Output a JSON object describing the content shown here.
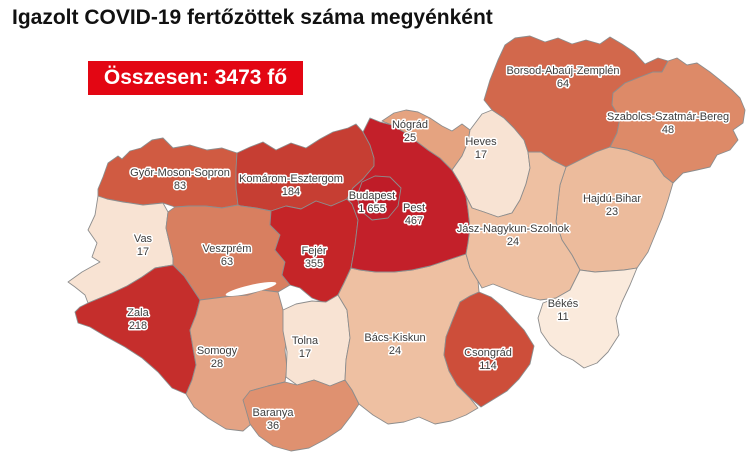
{
  "header": {
    "title": "Igazolt COVID-19 fertőzöttek száma megyénként"
  },
  "total_banner": {
    "text": "Összesen: 3473 fő",
    "label_prefix": "Összesen:",
    "value": 3473,
    "unit": "fő",
    "background_color": "#e30613",
    "text_color": "#ffffff"
  },
  "chart_data": {
    "type": "choropleth-map",
    "title": "Igazolt COVID-19 fertőzöttek száma megyénként",
    "region": "Hungary counties",
    "unit": "fő",
    "total": 3473,
    "legend": "none",
    "color_scale": {
      "low_value": 11,
      "low_color": "#fbeadc",
      "high_value": 1655,
      "high_color": "#bf1c28"
    },
    "counties": [
      {
        "name": "Győr-Moson-Sopron",
        "value": 83,
        "display_value": "83",
        "color": "#d05b42"
      },
      {
        "name": "Komárom-Esztergom",
        "value": 184,
        "display_value": "184",
        "color": "#c63e33"
      },
      {
        "name": "Vas",
        "value": 17,
        "display_value": "17",
        "color": "#f8e3d3"
      },
      {
        "name": "Veszprém",
        "value": 63,
        "display_value": "63",
        "color": "#d87f60"
      },
      {
        "name": "Zala",
        "value": 218,
        "display_value": "218",
        "color": "#c52e2c"
      },
      {
        "name": "Somogy",
        "value": 28,
        "display_value": "28",
        "color": "#e4a384"
      },
      {
        "name": "Fejér",
        "value": 355,
        "display_value": "355",
        "color": "#c52528"
      },
      {
        "name": "Tolna",
        "value": 17,
        "display_value": "17",
        "color": "#f8e3d3"
      },
      {
        "name": "Baranya",
        "value": 36,
        "display_value": "36",
        "color": "#df9170"
      },
      {
        "name": "Bács-Kiskun",
        "value": 24,
        "display_value": "24",
        "color": "#eec0a2"
      },
      {
        "name": "Pest",
        "value": 467,
        "display_value": "467",
        "color": "#c3202a"
      },
      {
        "name": "Budapest",
        "value": 1655,
        "display_value": "1 655",
        "color": "#bf1c28"
      },
      {
        "name": "Nógrád",
        "value": 25,
        "display_value": "25",
        "color": "#e5a380"
      },
      {
        "name": "Heves",
        "value": 17,
        "display_value": "17",
        "color": "#f8e3d3"
      },
      {
        "name": "Borsod-Abaúj-Zemplén",
        "value": 64,
        "display_value": "64",
        "color": "#d2684c"
      },
      {
        "name": "Szabolcs-Szatmár-Bereg",
        "value": 48,
        "display_value": "48",
        "color": "#dd8a68"
      },
      {
        "name": "Hajdú-Bihar",
        "value": 23,
        "display_value": "23",
        "color": "#ecbb9c"
      },
      {
        "name": "Jász-Nagykun-Szolnok",
        "value": 24,
        "display_value": "24",
        "color": "#eec0a2"
      },
      {
        "name": "Békés",
        "value": 11,
        "display_value": "11",
        "color": "#faeadc"
      },
      {
        "name": "Csongrád",
        "value": 114,
        "display_value": "114",
        "color": "#cd4e3a"
      }
    ]
  }
}
